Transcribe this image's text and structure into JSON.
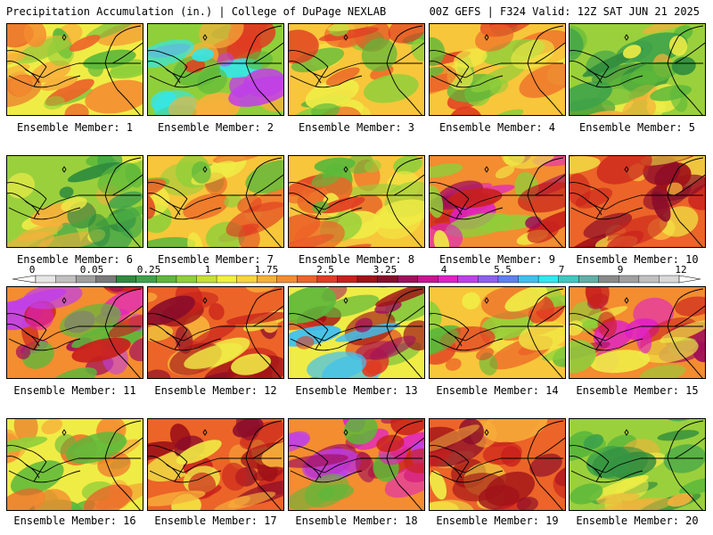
{
  "header": {
    "title": "Precipitation Accumulation (in.) | College of DuPage NEXLAB",
    "run_info": "00Z GEFS | F324 Valid: 12Z SAT JUN 21 2025"
  },
  "panels": [
    {
      "label": "Ensemble Member: 1",
      "tone": "light"
    },
    {
      "label": "Ensemble Member: 2",
      "tone": "wet-sw-cyan"
    },
    {
      "label": "Ensemble Member: 3",
      "tone": "medium"
    },
    {
      "label": "Ensemble Member: 4",
      "tone": "medium"
    },
    {
      "label": "Ensemble Member: 5",
      "tone": "dry"
    },
    {
      "label": "Ensemble Member: 6",
      "tone": "dry"
    },
    {
      "label": "Ensemble Member: 7",
      "tone": "medium"
    },
    {
      "label": "Ensemble Member: 8",
      "tone": "medium"
    },
    {
      "label": "Ensemble Member: 9",
      "tone": "wet-band"
    },
    {
      "label": "Ensemble Member: 10",
      "tone": "wet"
    },
    {
      "label": "Ensemble Member: 11",
      "tone": "wet-sw"
    },
    {
      "label": "Ensemble Member: 12",
      "tone": "wet"
    },
    {
      "label": "Ensemble Member: 13",
      "tone": "wet-nw"
    },
    {
      "label": "Ensemble Member: 14",
      "tone": "medium"
    },
    {
      "label": "Ensemble Member: 15",
      "tone": "wet-band"
    },
    {
      "label": "Ensemble Member: 16",
      "tone": "light"
    },
    {
      "label": "Ensemble Member: 17",
      "tone": "wet"
    },
    {
      "label": "Ensemble Member: 18",
      "tone": "wet-sw"
    },
    {
      "label": "Ensemble Member: 19",
      "tone": "wet"
    },
    {
      "label": "Ensemble Member: 20",
      "tone": "dry"
    }
  ],
  "colorbar": {
    "labels": [
      "0",
      "0.05",
      "0.25",
      "1",
      "1.75",
      "2.5",
      "3.25",
      "4",
      "5.5",
      "7",
      "9",
      "12"
    ],
    "colors": [
      "#e6e6e6",
      "#c0c0c0",
      "#a0a0a0",
      "#7a7a7a",
      "#2e8b3e",
      "#3da24a",
      "#5cb83a",
      "#8fcf3a",
      "#c8e036",
      "#f0f03c",
      "#f8d43c",
      "#f8b03a",
      "#f48c30",
      "#ec6428",
      "#e03c22",
      "#c8201c",
      "#a01218",
      "#8a0c2a",
      "#a0105a",
      "#c81490",
      "#e020c8",
      "#c040e8",
      "#8c60f0",
      "#6080f0",
      "#40c0f0",
      "#30e8f0",
      "#40c8c0",
      "#60b0a8",
      "#8a8a8a",
      "#a0a0a0",
      "#c0c0c0",
      "#d8d8d8"
    ]
  }
}
